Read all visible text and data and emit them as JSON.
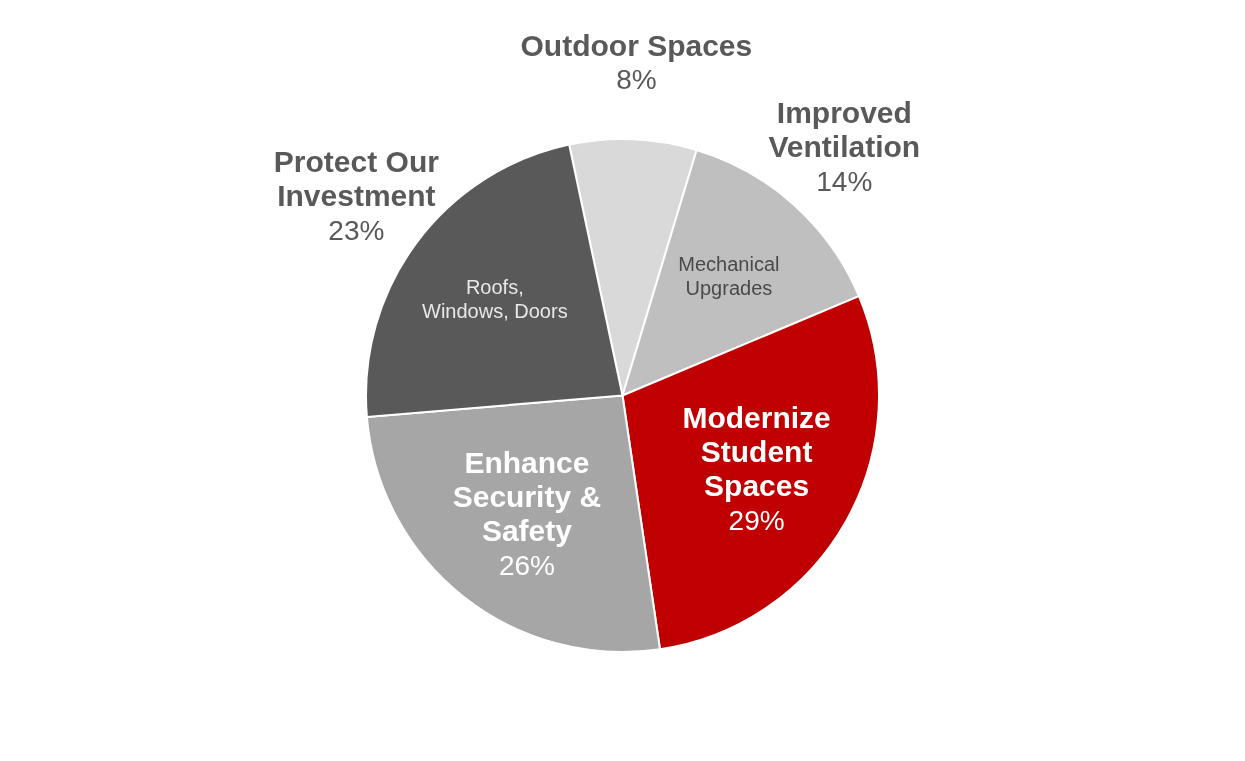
{
  "chart_data": {
    "type": "pie",
    "categories": [
      "Outdoor Spaces",
      "Improved Ventilation",
      "Modernize Student Spaces",
      "Enhance Security & Safety",
      "Protect Our Investment"
    ],
    "values": [
      8,
      14,
      29,
      26,
      23
    ],
    "value_labels": [
      "8%",
      "14%",
      "29%",
      "26%",
      "23%"
    ],
    "colors": [
      "#d9d9d9",
      "#bfbfbf",
      "#c00000",
      "#a6a6a6",
      "#595959"
    ],
    "annotations": [
      {
        "text": "Mechanical Upgrades",
        "x": "Improved Ventilation"
      },
      {
        "text": "Roofs, Windows, Doors",
        "x": "Protect Our Investment"
      }
    ],
    "legend": false
  }
}
